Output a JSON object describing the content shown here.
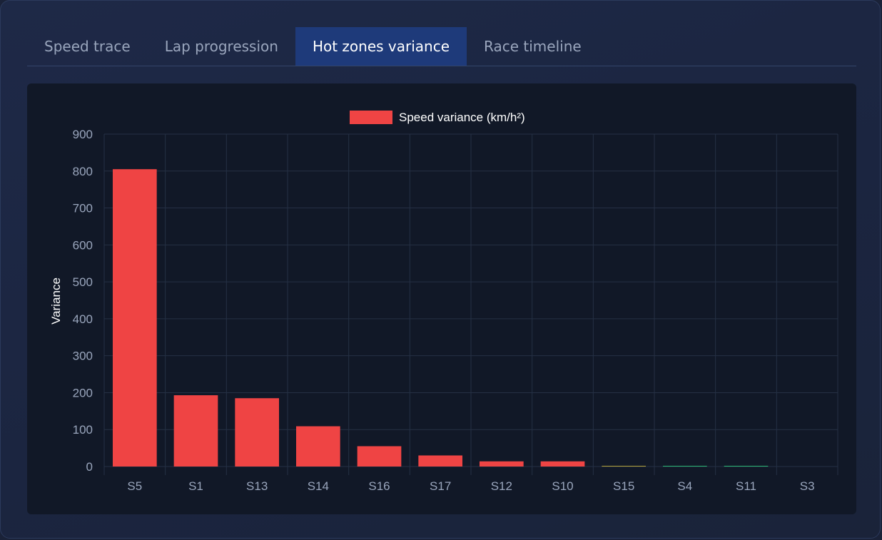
{
  "tabs": [
    {
      "label": "Speed trace",
      "active": false
    },
    {
      "label": "Lap progression",
      "active": false
    },
    {
      "label": "Hot zones variance",
      "active": true
    },
    {
      "label": "Race timeline",
      "active": false
    }
  ],
  "colors": {
    "bar": "#ef4444",
    "bar_low": "#b5a33a",
    "bar_low_green": "#2bb673",
    "grid": "#253044",
    "tick_text": "#9aa6bd",
    "label_text": "#ffffff"
  },
  "chart_data": {
    "type": "bar",
    "legend": {
      "label": "Speed variance (km/h²)",
      "placement": "top"
    },
    "ylabel": "Variance",
    "xlabel": "",
    "categories": [
      "S5",
      "S1",
      "S13",
      "S14",
      "S16",
      "S17",
      "S12",
      "S10",
      "S15",
      "S4",
      "S11",
      "S3"
    ],
    "values": [
      805,
      193,
      185,
      109,
      55,
      30,
      14,
      14,
      1.5,
      1,
      1,
      0
    ],
    "ylim": [
      0,
      900
    ],
    "yticks": [
      0,
      100,
      200,
      300,
      400,
      500,
      600,
      700,
      800,
      900
    ],
    "grid": true
  }
}
